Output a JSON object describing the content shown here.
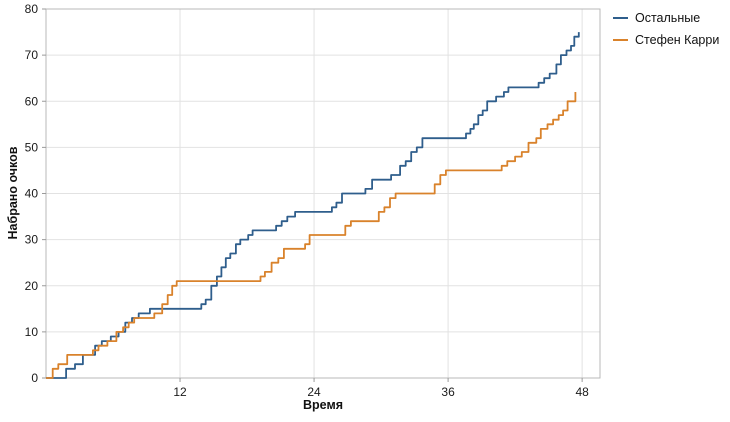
{
  "chart_data": {
    "type": "line",
    "step": true,
    "xlabel": "Время",
    "ylabel": "Набрано очков",
    "xlim": [
      0,
      49.6
    ],
    "ylim": [
      0,
      80
    ],
    "x_ticks": [
      12,
      24,
      36,
      48
    ],
    "y_ticks": [
      0,
      10,
      20,
      30,
      40,
      50,
      60,
      70,
      80
    ],
    "grid": true,
    "legend_position": "top-right",
    "colors": {
      "grid": "#e2e2e2",
      "border": "#b9b9b9",
      "tick": "#9a9a9a",
      "text": "#1a1a1a"
    },
    "series": [
      {
        "name": "Остальные",
        "color": "#2f5e8c",
        "points": [
          [
            0,
            0
          ],
          [
            1.8,
            2
          ],
          [
            2.6,
            3
          ],
          [
            3.3,
            5
          ],
          [
            4.4,
            7
          ],
          [
            5.0,
            8
          ],
          [
            5.8,
            9
          ],
          [
            6.5,
            10
          ],
          [
            7.1,
            12
          ],
          [
            7.7,
            13
          ],
          [
            8.3,
            14
          ],
          [
            9.3,
            15
          ],
          [
            13.9,
            16
          ],
          [
            14.3,
            17
          ],
          [
            14.8,
            20
          ],
          [
            15.3,
            22
          ],
          [
            15.7,
            24
          ],
          [
            16.1,
            26
          ],
          [
            16.5,
            27
          ],
          [
            17.0,
            29
          ],
          [
            17.4,
            30
          ],
          [
            18.1,
            31
          ],
          [
            18.5,
            32
          ],
          [
            20.6,
            33
          ],
          [
            21.1,
            34
          ],
          [
            21.6,
            35
          ],
          [
            22.3,
            36
          ],
          [
            25.6,
            37
          ],
          [
            26.0,
            38
          ],
          [
            26.5,
            40
          ],
          [
            28.6,
            41
          ],
          [
            29.2,
            43
          ],
          [
            30.9,
            44
          ],
          [
            31.7,
            46
          ],
          [
            32.2,
            47
          ],
          [
            32.7,
            49
          ],
          [
            33.2,
            50
          ],
          [
            33.7,
            52
          ],
          [
            37.6,
            53
          ],
          [
            38.0,
            54
          ],
          [
            38.3,
            55
          ],
          [
            38.7,
            57
          ],
          [
            39.1,
            58
          ],
          [
            39.5,
            60
          ],
          [
            40.3,
            61
          ],
          [
            41.0,
            62
          ],
          [
            41.4,
            63
          ],
          [
            44.1,
            64
          ],
          [
            44.6,
            65
          ],
          [
            45.1,
            66
          ],
          [
            45.7,
            68
          ],
          [
            46.1,
            70
          ],
          [
            46.6,
            71
          ],
          [
            47.0,
            72
          ],
          [
            47.3,
            74
          ],
          [
            47.7,
            75
          ]
        ]
      },
      {
        "name": "Стефен Карри",
        "color": "#d9822b",
        "points": [
          [
            0,
            0
          ],
          [
            0.6,
            2
          ],
          [
            1.1,
            3
          ],
          [
            1.9,
            5
          ],
          [
            4.2,
            6
          ],
          [
            4.7,
            7
          ],
          [
            5.5,
            8
          ],
          [
            6.3,
            10
          ],
          [
            6.9,
            11
          ],
          [
            7.4,
            12
          ],
          [
            7.9,
            13
          ],
          [
            9.7,
            14
          ],
          [
            10.4,
            16
          ],
          [
            10.9,
            18
          ],
          [
            11.3,
            20
          ],
          [
            11.7,
            21
          ],
          [
            19.2,
            22
          ],
          [
            19.6,
            23
          ],
          [
            20.2,
            25
          ],
          [
            20.8,
            26
          ],
          [
            21.3,
            28
          ],
          [
            23.2,
            29
          ],
          [
            23.6,
            31
          ],
          [
            26.8,
            33
          ],
          [
            27.3,
            34
          ],
          [
            29.8,
            36
          ],
          [
            30.3,
            37
          ],
          [
            30.8,
            39
          ],
          [
            31.3,
            40
          ],
          [
            34.8,
            42
          ],
          [
            35.3,
            44
          ],
          [
            35.8,
            45
          ],
          [
            40.8,
            46
          ],
          [
            41.3,
            47
          ],
          [
            42.0,
            48
          ],
          [
            42.6,
            49
          ],
          [
            43.2,
            51
          ],
          [
            43.9,
            52
          ],
          [
            44.3,
            54
          ],
          [
            44.9,
            55
          ],
          [
            45.4,
            56
          ],
          [
            45.9,
            57
          ],
          [
            46.3,
            58
          ],
          [
            46.7,
            60
          ],
          [
            47.4,
            62
          ]
        ]
      }
    ]
  }
}
